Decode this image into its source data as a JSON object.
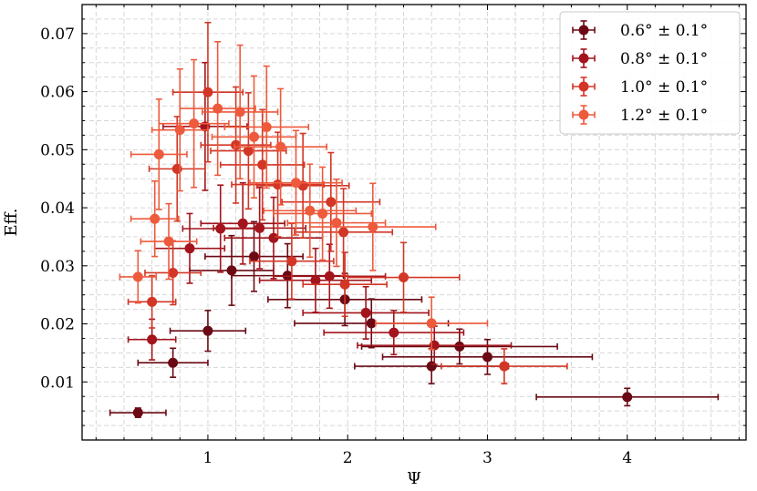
{
  "chart_data": {
    "type": "scatter",
    "title": "",
    "xlabel": "Ψ",
    "ylabel": "Eff.",
    "xlim": [
      0.1,
      4.85
    ],
    "ylim": [
      0.0,
      0.075
    ],
    "xticks": [
      1,
      2,
      3,
      4
    ],
    "yticks": [
      0.01,
      0.02,
      0.03,
      0.04,
      0.05,
      0.06,
      0.07
    ],
    "xtick_labels": [
      "1",
      "2",
      "3",
      "4"
    ],
    "ytick_labels": [
      "0.01",
      "0.02",
      "0.03",
      "0.04",
      "0.05",
      "0.06",
      "0.07"
    ],
    "grid": true,
    "legend_position": "top-right",
    "series": [
      {
        "name": "0.6° ± 0.1°",
        "color": "#6b0a14",
        "points": [
          {
            "x": 0.5,
            "y": 0.0047,
            "xerr": 0.2,
            "yerr": 0.0008
          },
          {
            "x": 0.75,
            "y": 0.0133,
            "xerr": 0.25,
            "yerr": 0.0025
          },
          {
            "x": 1.0,
            "y": 0.0188,
            "xerr": 0.27,
            "yerr": 0.0035
          },
          {
            "x": 1.17,
            "y": 0.0292,
            "xerr": 0.3,
            "yerr": 0.006
          },
          {
            "x": 1.33,
            "y": 0.0316,
            "xerr": 0.35,
            "yerr": 0.006
          },
          {
            "x": 1.57,
            "y": 0.0283,
            "xerr": 0.4,
            "yerr": 0.0055
          },
          {
            "x": 1.98,
            "y": 0.0242,
            "xerr": 0.55,
            "yerr": 0.0045
          },
          {
            "x": 2.17,
            "y": 0.0201,
            "xerr": 0.55,
            "yerr": 0.0042
          },
          {
            "x": 2.6,
            "y": 0.0127,
            "xerr": 0.55,
            "yerr": 0.003
          },
          {
            "x": 2.8,
            "y": 0.0161,
            "xerr": 0.7,
            "yerr": 0.003
          },
          {
            "x": 3.0,
            "y": 0.0143,
            "xerr": 0.75,
            "yerr": 0.003
          },
          {
            "x": 4.0,
            "y": 0.0074,
            "xerr": 0.65,
            "yerr": 0.0015
          }
        ]
      },
      {
        "name": "0.8° ± 0.1°",
        "color": "#a3141c",
        "points": [
          {
            "x": 0.6,
            "y": 0.0173,
            "xerr": 0.17,
            "yerr": 0.0035
          },
          {
            "x": 0.87,
            "y": 0.033,
            "xerr": 0.25,
            "yerr": 0.006
          },
          {
            "x": 0.98,
            "y": 0.054,
            "xerr": 0.3,
            "yerr": 0.011
          },
          {
            "x": 1.09,
            "y": 0.0364,
            "xerr": 0.27,
            "yerr": 0.0075
          },
          {
            "x": 1.25,
            "y": 0.0373,
            "xerr": 0.3,
            "yerr": 0.007
          },
          {
            "x": 1.37,
            "y": 0.0365,
            "xerr": 0.33,
            "yerr": 0.007
          },
          {
            "x": 1.47,
            "y": 0.0348,
            "xerr": 0.35,
            "yerr": 0.007
          },
          {
            "x": 1.77,
            "y": 0.0275,
            "xerr": 0.4,
            "yerr": 0.0055
          },
          {
            "x": 1.87,
            "y": 0.0282,
            "xerr": 0.4,
            "yerr": 0.0055
          },
          {
            "x": 2.13,
            "y": 0.0219,
            "xerr": 0.45,
            "yerr": 0.0045
          },
          {
            "x": 2.33,
            "y": 0.0185,
            "xerr": 0.5,
            "yerr": 0.0038
          },
          {
            "x": 2.62,
            "y": 0.0163,
            "xerr": 0.55,
            "yerr": 0.0033
          }
        ]
      },
      {
        "name": "1.0° ± 0.1°",
        "color": "#d23626",
        "points": [
          {
            "x": 0.6,
            "y": 0.0238,
            "xerr": 0.17,
            "yerr": 0.0045
          },
          {
            "x": 0.75,
            "y": 0.0288,
            "xerr": 0.2,
            "yerr": 0.0055
          },
          {
            "x": 0.78,
            "y": 0.0467,
            "xerr": 0.2,
            "yerr": 0.009
          },
          {
            "x": 1.0,
            "y": 0.0599,
            "xerr": 0.25,
            "yerr": 0.012
          },
          {
            "x": 1.2,
            "y": 0.0508,
            "xerr": 0.25,
            "yerr": 0.01
          },
          {
            "x": 1.29,
            "y": 0.0498,
            "xerr": 0.27,
            "yerr": 0.01
          },
          {
            "x": 1.39,
            "y": 0.0474,
            "xerr": 0.3,
            "yerr": 0.0095
          },
          {
            "x": 1.5,
            "y": 0.044,
            "xerr": 0.33,
            "yerr": 0.009
          },
          {
            "x": 1.6,
            "y": 0.0308,
            "xerr": 0.3,
            "yerr": 0.0065
          },
          {
            "x": 1.68,
            "y": 0.0438,
            "xerr": 0.33,
            "yerr": 0.009
          },
          {
            "x": 1.88,
            "y": 0.041,
            "xerr": 0.35,
            "yerr": 0.0085
          },
          {
            "x": 1.97,
            "y": 0.0358,
            "xerr": 0.35,
            "yerr": 0.0075
          },
          {
            "x": 1.98,
            "y": 0.0268,
            "xerr": 0.3,
            "yerr": 0.0055
          },
          {
            "x": 2.4,
            "y": 0.028,
            "xerr": 0.4,
            "yerr": 0.006
          },
          {
            "x": 3.12,
            "y": 0.0127,
            "xerr": 0.45,
            "yerr": 0.003
          }
        ]
      },
      {
        "name": "1.2° ± 0.1°",
        "color": "#ee5a3c",
        "points": [
          {
            "x": 0.5,
            "y": 0.0281,
            "xerr": 0.13,
            "yerr": 0.0045
          },
          {
            "x": 0.62,
            "y": 0.0381,
            "xerr": 0.17,
            "yerr": 0.0065
          },
          {
            "x": 0.65,
            "y": 0.0492,
            "xerr": 0.2,
            "yerr": 0.0095
          },
          {
            "x": 0.72,
            "y": 0.0342,
            "xerr": 0.2,
            "yerr": 0.0065
          },
          {
            "x": 0.8,
            "y": 0.0534,
            "xerr": 0.2,
            "yerr": 0.0105
          },
          {
            "x": 0.9,
            "y": 0.0545,
            "xerr": 0.25,
            "yerr": 0.011
          },
          {
            "x": 1.07,
            "y": 0.0571,
            "xerr": 0.27,
            "yerr": 0.0115
          },
          {
            "x": 1.23,
            "y": 0.0565,
            "xerr": 0.27,
            "yerr": 0.0115
          },
          {
            "x": 1.33,
            "y": 0.0522,
            "xerr": 0.3,
            "yerr": 0.0105
          },
          {
            "x": 1.42,
            "y": 0.0539,
            "xerr": 0.3,
            "yerr": 0.0105
          },
          {
            "x": 1.52,
            "y": 0.0505,
            "xerr": 0.33,
            "yerr": 0.01
          },
          {
            "x": 1.63,
            "y": 0.0443,
            "xerr": 0.33,
            "yerr": 0.009
          },
          {
            "x": 1.73,
            "y": 0.0395,
            "xerr": 0.33,
            "yerr": 0.008
          },
          {
            "x": 1.82,
            "y": 0.039,
            "xerr": 0.35,
            "yerr": 0.008
          },
          {
            "x": 1.92,
            "y": 0.0374,
            "xerr": 0.35,
            "yerr": 0.0075
          },
          {
            "x": 2.18,
            "y": 0.0367,
            "xerr": 0.45,
            "yerr": 0.0075
          },
          {
            "x": 2.6,
            "y": 0.0201,
            "xerr": 0.4,
            "yerr": 0.0045
          }
        ]
      }
    ]
  }
}
